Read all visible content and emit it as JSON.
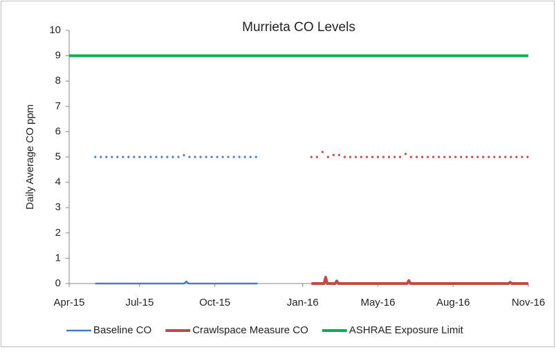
{
  "chart_data": {
    "type": "line",
    "title": "Murrieta CO Levels",
    "y_label": "Daily Average CO ppm",
    "xlim": [
      42095,
      42675
    ],
    "xticks": [
      {
        "value": 42095,
        "label": "Apr-15"
      },
      {
        "value": 42184,
        "label": "Jul-15"
      },
      {
        "value": 42279,
        "label": "Oct-15"
      },
      {
        "value": 42390,
        "label": "Jan-16"
      },
      {
        "value": 42485,
        "label": "May-16"
      },
      {
        "value": 42580,
        "label": "Aug-16"
      },
      {
        "value": 42675,
        "label": "Nov-16"
      }
    ],
    "ylim": [
      0,
      10
    ],
    "yticks": [
      0,
      1,
      2,
      3,
      4,
      5,
      6,
      7,
      8,
      9,
      10
    ],
    "legend": "bottom",
    "series": [
      {
        "name": "Baseline CO",
        "color": "#4a7ebb",
        "style": "solid",
        "x": [
          42128,
          42240,
          42243,
          42246,
          42333
        ],
        "values": [
          0,
          0,
          0.08,
          0,
          0
        ]
      },
      {
        "name": "Crawlspace Measure CO",
        "color": "#be4b48",
        "style": "solid",
        "x": [
          42401,
          42417,
          42419,
          42421,
          42431,
          42433,
          42435,
          42522,
          42524,
          42526,
          42650,
          42652,
          42654,
          42675
        ],
        "values": [
          0,
          0,
          0.25,
          0,
          0,
          0.1,
          0,
          0,
          0.12,
          0,
          0,
          0.05,
          0,
          0
        ]
      },
      {
        "name": "ASHRAE Exposure Limit",
        "color": "#00b050",
        "style": "solid",
        "x": [
          42095,
          42675
        ],
        "values": [
          9,
          9
        ]
      },
      {
        "color": "#4a7ebb",
        "style": "dotted",
        "x": [
          42128,
          42135,
          42142,
          42149,
          42156,
          42163,
          42170,
          42177,
          42184,
          42191,
          42198,
          42205,
          42212,
          42219,
          42226,
          42233,
          42240,
          42247,
          42254,
          42261,
          42268,
          42275,
          42282,
          42289,
          42296,
          42303,
          42310,
          42317,
          42324,
          42331
        ],
        "values": [
          5,
          5,
          5,
          5,
          5,
          5,
          5,
          5,
          5,
          5,
          5,
          5,
          5,
          5,
          5,
          5,
          5.07,
          5,
          5,
          5,
          5,
          5,
          5,
          5,
          5,
          5,
          5,
          5,
          5,
          5
        ]
      },
      {
        "color": "#be4b48",
        "style": "dotted",
        "x": [
          42401,
          42408,
          42415,
          42422,
          42429,
          42436,
          42443,
          42450,
          42457,
          42464,
          42471,
          42478,
          42485,
          42492,
          42499,
          42506,
          42513,
          42520,
          42527,
          42534,
          42541,
          42548,
          42555,
          42562,
          42569,
          42576,
          42583,
          42590,
          42597,
          42604,
          42611,
          42618,
          42625,
          42632,
          42639,
          42646,
          42653,
          42660,
          42667,
          42674
        ],
        "values": [
          5,
          5,
          5.2,
          5,
          5.08,
          5.08,
          5,
          5,
          5,
          5,
          5,
          5,
          5,
          5,
          5,
          5,
          5,
          5.12,
          5,
          5,
          5,
          5,
          5,
          5,
          5,
          5,
          5,
          5,
          5,
          5,
          5,
          5,
          5,
          5,
          5,
          5,
          5,
          5,
          5,
          5
        ]
      }
    ]
  }
}
